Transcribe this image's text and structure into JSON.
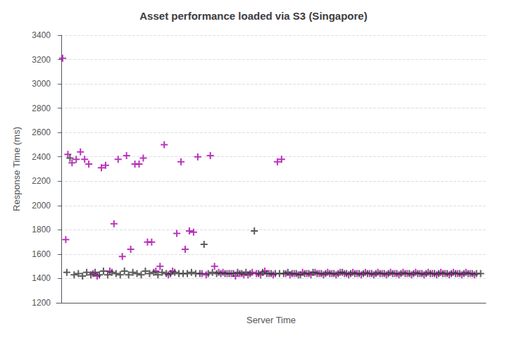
{
  "chart_data": {
    "type": "scatter",
    "title": "Asset performance loaded via S3 (Singapore)",
    "x_label": "Server Time",
    "y_label": "Response Time (ms)",
    "xlim": [
      -5,
      405
    ],
    "ylim": [
      1200,
      3400
    ],
    "yticks": [
      1200,
      1400,
      1600,
      1800,
      2000,
      2200,
      2400,
      2600,
      2800,
      3000,
      3200,
      3400
    ],
    "grid": true,
    "tick_labels": "y",
    "series": [
      {
        "color": "#AA00AA",
        "marker": "+",
        "x": [
          1,
          4,
          6,
          10,
          14,
          18,
          22,
          26,
          30,
          34,
          38,
          42,
          46,
          50,
          54,
          58,
          62,
          66,
          70,
          74,
          78,
          82,
          86,
          90,
          94,
          98,
          102,
          106,
          110,
          114,
          118,
          122,
          126,
          130,
          134,
          138,
          142,
          146,
          150,
          154,
          158,
          162,
          166,
          170,
          174,
          178,
          182,
          186,
          190,
          194,
          198,
          202,
          206,
          210,
          214,
          218,
          222,
          226,
          230,
          234,
          238,
          242,
          246,
          250,
          254,
          258,
          262,
          266,
          270,
          274,
          278,
          282,
          286,
          290,
          294,
          298,
          302,
          306,
          310,
          314,
          318,
          322,
          326,
          330,
          334,
          338,
          342,
          346,
          350,
          354,
          358,
          362,
          366,
          370,
          374,
          378,
          382,
          386,
          390,
          394
        ],
        "values": [
          3210,
          1720,
          2420,
          2350,
          2380,
          2440,
          2380,
          2340,
          1440,
          1420,
          2310,
          2330,
          1460,
          1850,
          2380,
          1580,
          2410,
          1640,
          2340,
          2340,
          2390,
          1700,
          1700,
          1460,
          1500,
          2500,
          1430,
          1460,
          1770,
          2360,
          1640,
          1790,
          1780,
          2400,
          1440,
          1430,
          2410,
          1500,
          1450,
          1450,
          1440,
          1440,
          1420,
          1440,
          1430,
          1430,
          1450,
          1440,
          1430,
          1460,
          1440,
          1430,
          2360,
          2380,
          1440,
          1430,
          1440,
          1430,
          1450,
          1440,
          1430,
          1450,
          1440,
          1430,
          1450,
          1440,
          1430,
          1450,
          1440,
          1430,
          1450,
          1440,
          1430,
          1450,
          1440,
          1430,
          1450,
          1440,
          1430,
          1450,
          1440,
          1430,
          1450,
          1440,
          1430,
          1450,
          1440,
          1430,
          1450,
          1440,
          1430,
          1450,
          1440,
          1430,
          1450,
          1440,
          1430,
          1450,
          1440,
          1430
        ]
      },
      {
        "color": "#333333",
        "marker": "+",
        "x": [
          5,
          8,
          12,
          16,
          20,
          24,
          28,
          32,
          36,
          40,
          44,
          48,
          52,
          56,
          60,
          64,
          68,
          72,
          76,
          80,
          84,
          88,
          92,
          96,
          100,
          104,
          108,
          112,
          116,
          120,
          124,
          128,
          132,
          136,
          140,
          144,
          148,
          152,
          156,
          160,
          164,
          168,
          172,
          176,
          180,
          184,
          188,
          192,
          196,
          200,
          204,
          208,
          212,
          216,
          220,
          224,
          228,
          232,
          236,
          240,
          244,
          248,
          252,
          256,
          260,
          264,
          268,
          272,
          276,
          280,
          284,
          288,
          292,
          296,
          300,
          304,
          308,
          312,
          316,
          320,
          324,
          328,
          332,
          336,
          340,
          344,
          348,
          352,
          356,
          360,
          364,
          368,
          372,
          376,
          380,
          384,
          388,
          392,
          396,
          400
        ],
        "values": [
          1450,
          2390,
          1430,
          1440,
          1420,
          1450,
          1430,
          1450,
          1430,
          1460,
          1430,
          1450,
          1440,
          1430,
          1460,
          1430,
          1450,
          1440,
          1430,
          1460,
          1440,
          1450,
          1430,
          1450,
          1440,
          1440,
          1450,
          1440,
          1440,
          1440,
          1450,
          1440,
          1440,
          1680,
          1440,
          1450,
          1440,
          1440,
          1440,
          1440,
          1440,
          1450,
          1440,
          1450,
          1440,
          1790,
          1440,
          1450,
          1440,
          1440,
          1440,
          1440,
          1440,
          1450,
          1440,
          1440,
          1430,
          1440,
          1440,
          1450,
          1440,
          1440,
          1440,
          1440,
          1440,
          1440,
          1450,
          1440,
          1440,
          1440,
          1440,
          1440,
          1440,
          1440,
          1440,
          1440,
          1440,
          1440,
          1440,
          1440,
          1440,
          1440,
          1440,
          1440,
          1440,
          1440,
          1440,
          1440,
          1440,
          1440,
          1440,
          1440,
          1440,
          1440,
          1440,
          1440,
          1440,
          1440,
          1440,
          1440
        ]
      }
    ]
  }
}
